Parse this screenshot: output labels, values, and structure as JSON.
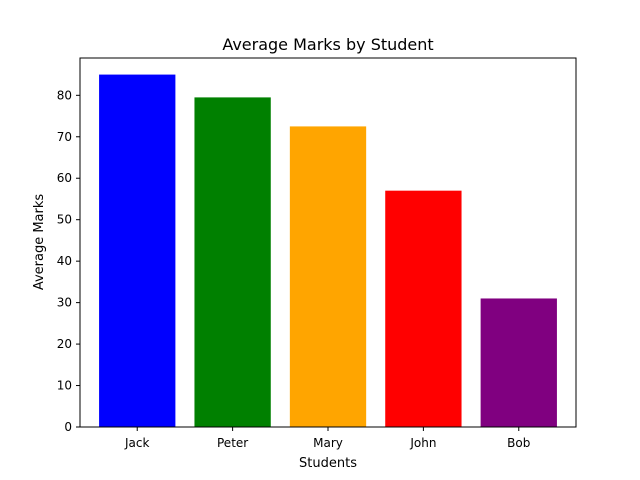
{
  "chart_data": {
    "type": "bar",
    "title": "Average Marks by Student",
    "xlabel": "Students",
    "ylabel": "Average Marks",
    "categories": [
      "Jack",
      "Peter",
      "Mary",
      "John",
      "Bob"
    ],
    "values": [
      85,
      79.5,
      72.5,
      57,
      31
    ],
    "colors": [
      "#0000ff",
      "#008000",
      "#ffa500",
      "#ff0000",
      "#800080"
    ],
    "ylim": [
      0,
      89
    ],
    "yticks": [
      0,
      10,
      20,
      30,
      40,
      50,
      60,
      70,
      80
    ],
    "grid": false,
    "legend": "none"
  }
}
